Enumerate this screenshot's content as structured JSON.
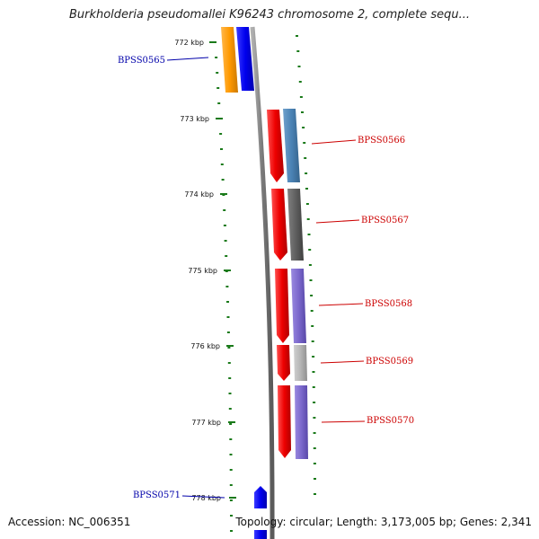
{
  "title": "Burkholderia pseudomallei K96243 chromosome 2, complete sequ...",
  "accession": "Accession: NC_006351",
  "stats": "Topology: circular; Length: 3,173,005 bp; Genes: 2,341",
  "colors": {
    "ticks": "#1a7a1a",
    "backbone": "#8a8a8a",
    "reverse_label": "#cc0000",
    "forward_label": "#0000aa"
  },
  "kbp_labels": [
    "772 kbp",
    "773 kbp",
    "774 kbp",
    "775 kbp",
    "776 kbp",
    "777 kbp",
    "778 kbp"
  ],
  "genes": [
    {
      "label": "BPSS0565",
      "strand": "forward",
      "color": "#0000ee",
      "cog_color": "#ff9900"
    },
    {
      "label": "BPSS0566",
      "strand": "reverse",
      "color": "#ee0000",
      "cog_color": "#4a82b4"
    },
    {
      "label": "BPSS0567",
      "strand": "reverse",
      "color": "#ee0000",
      "cog_color": "#606060"
    },
    {
      "label": "BPSS0568",
      "strand": "reverse",
      "color": "#ee0000",
      "cog_color": "#7b68cc"
    },
    {
      "label": "BPSS0569",
      "strand": "reverse",
      "color": "#ee0000",
      "cog_color": "#b5b5b5"
    },
    {
      "label": "BPSS0570",
      "strand": "reverse",
      "color": "#ee0000",
      "cog_color": "#7b68cc"
    },
    {
      "label": "BPSS0571",
      "strand": "forward",
      "color": "#0000ee",
      "cog_color": ""
    }
  ]
}
